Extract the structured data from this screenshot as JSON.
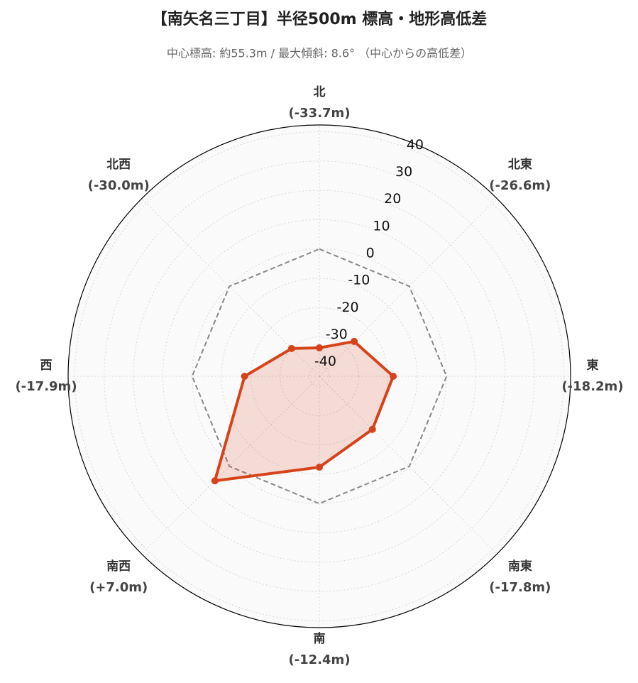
{
  "chart_data": {
    "type": "radar",
    "title": "【南矢名三丁目】半径500m 標高・地形高低差",
    "subtitle": "中心標高: 約55.3m / 最大傾斜: 8.6° （中心からの高低差）",
    "categories": [
      "北",
      "北東",
      "東",
      "南東",
      "南",
      "南西",
      "西",
      "北西"
    ],
    "values": [
      -33.7,
      -26.6,
      -18.2,
      -17.8,
      -12.4,
      7.0,
      -17.9,
      -30.0
    ],
    "value_labels": [
      "(-33.7m)",
      "(-26.6m)",
      "(-18.2m)",
      "(-17.8m)",
      "(-12.4m)",
      "(+7.0m)",
      "(-17.9m)",
      "(-30.0m)"
    ],
    "color": "#d6431b",
    "reference_value": 0,
    "rlim": [
      -43.4,
      42.3
    ],
    "rticks": [
      -40,
      -30,
      -20,
      -10,
      0,
      10,
      20,
      30,
      40
    ],
    "grid": true
  }
}
